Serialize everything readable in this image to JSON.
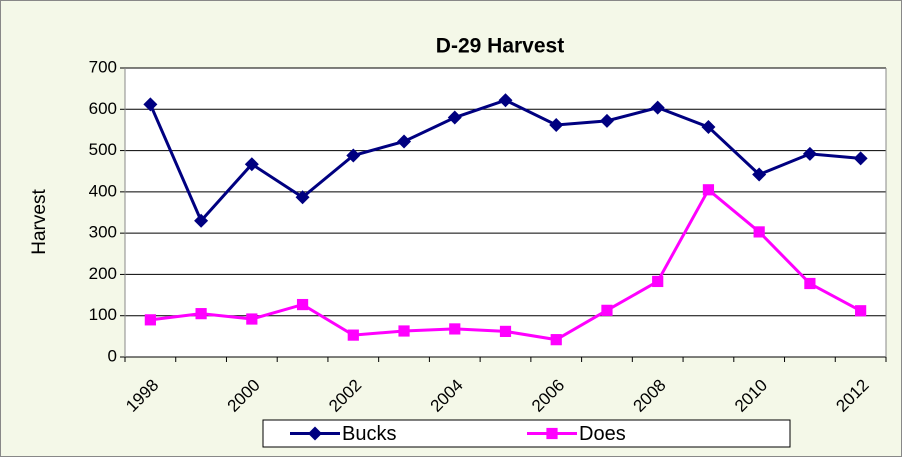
{
  "chart_data": {
    "type": "line",
    "title": "D-29 Harvest",
    "y_label": "Harvest",
    "categories": [
      "1998",
      null,
      "2000",
      null,
      "2002",
      null,
      "2004",
      null,
      "2006",
      null,
      "2008",
      null,
      "2010",
      null,
      "2012"
    ],
    "series": [
      {
        "name": "Bucks",
        "color": "#000080",
        "marker": "diamond",
        "values": [
          612,
          330,
          467,
          387,
          488,
          522,
          580,
          622,
          562,
          572,
          604,
          557,
          442,
          492,
          481
        ]
      },
      {
        "name": "Does",
        "color": "#ff00ff",
        "marker": "square",
        "values": [
          90,
          105,
          92,
          127,
          53,
          63,
          68,
          62,
          42,
          113,
          183,
          405,
          303,
          178,
          112
        ]
      }
    ],
    "ylim": [
      0,
      700
    ],
    "yticks": [
      0,
      100,
      200,
      300,
      400,
      500,
      600,
      700
    ],
    "grid": true,
    "legend": "bottom"
  }
}
